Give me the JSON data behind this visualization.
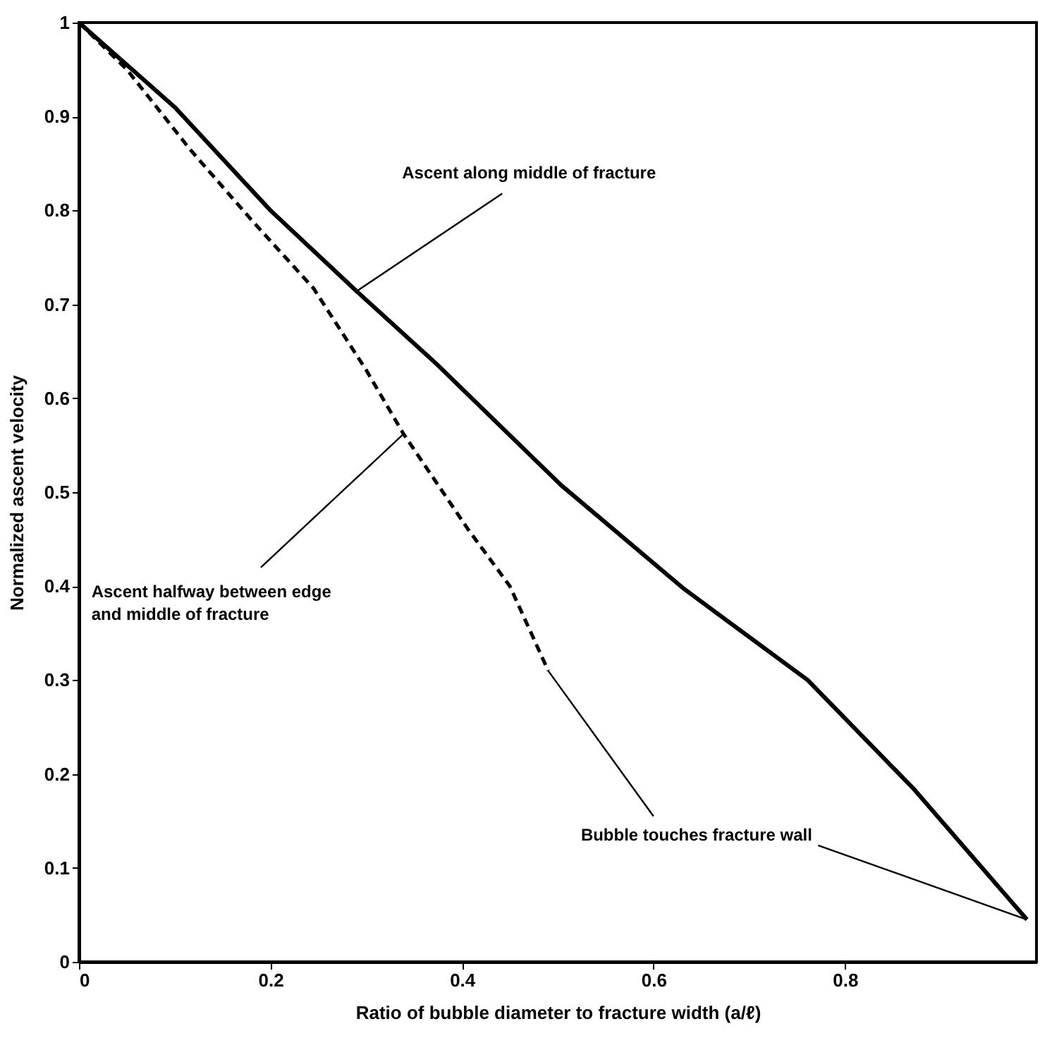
{
  "chart_data": {
    "type": "line",
    "xlabel": "Ratio of bubble diameter to fracture width (a/ℓ)",
    "ylabel": "Normalized ascent velocity",
    "xlim": [
      0,
      1
    ],
    "ylim": [
      0,
      1
    ],
    "xticks": [
      0,
      0.2,
      0.4,
      0.6,
      0.8
    ],
    "yticks": [
      0,
      0.1,
      0.2,
      0.3,
      0.4,
      0.5,
      0.6,
      0.7,
      0.8,
      0.9,
      1
    ],
    "grid": false,
    "marker": "none",
    "series": [
      {
        "color": "#000000",
        "line_style": "solid",
        "x": [
          0,
          0.1,
          0.2,
          0.29,
          0.374,
          0.503,
          0.632,
          0.761,
          0.871,
          0.99
        ],
        "values": [
          1,
          0.91,
          0.8,
          0.714,
          0.636,
          0.508,
          0.397,
          0.3,
          0.185,
          0.045
        ]
      },
      {
        "color": "#000000",
        "line_style": "dashed",
        "x": [
          0,
          0.05,
          0.116,
          0.18,
          0.245,
          0.3,
          0.339,
          0.406,
          0.45,
          0.49
        ],
        "values": [
          1,
          0.95,
          0.865,
          0.79,
          0.717,
          0.63,
          0.562,
          0.461,
          0.4,
          0.31
        ]
      }
    ],
    "annotations": [
      {
        "text": "Ascent along middle of fracture",
        "x": 0.29,
        "y": 0.714
      },
      {
        "text": "Ascent  halfway between edge\nand middle of fracture",
        "x": 0.339,
        "y": 0.562
      },
      {
        "text": "Bubble touches fracture wall",
        "x": 0.99,
        "y": 0.045
      }
    ]
  }
}
